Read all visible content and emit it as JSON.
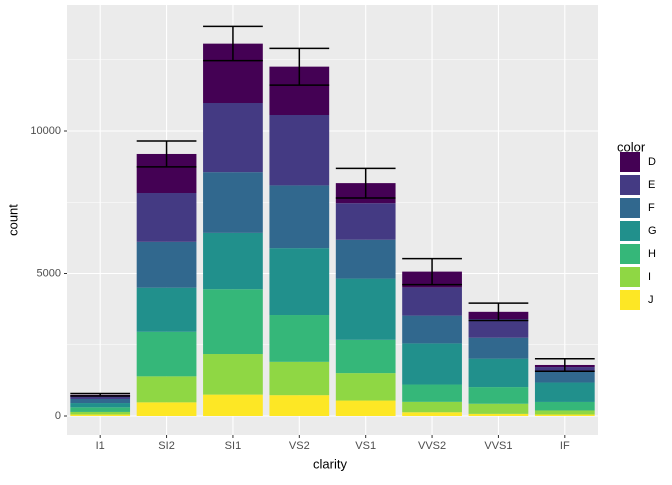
{
  "chart_data": {
    "type": "stacked_bar",
    "x_label": "clarity",
    "y_label": "count",
    "legend_title": "color",
    "categories": [
      "I1",
      "SI2",
      "SI1",
      "VS2",
      "VS1",
      "VVS2",
      "VVS1",
      "IF"
    ],
    "series": [
      {
        "name": "D",
        "color": "#440154",
        "values": [
          42,
          1370,
          2083,
          1697,
          705,
          553,
          252,
          73
        ]
      },
      {
        "name": "E",
        "color": "#443A83",
        "values": [
          102,
          1713,
          2426,
          2470,
          1281,
          991,
          656,
          158
        ]
      },
      {
        "name": "F",
        "color": "#31688E",
        "values": [
          143,
          1609,
          2131,
          2201,
          1364,
          975,
          734,
          385
        ]
      },
      {
        "name": "G",
        "color": "#21908C",
        "values": [
          150,
          1548,
          1976,
          2347,
          2148,
          1443,
          999,
          681
        ]
      },
      {
        "name": "H",
        "color": "#35B779",
        "values": [
          162,
          1563,
          2275,
          1643,
          1169,
          608,
          585,
          299
        ]
      },
      {
        "name": "I",
        "color": "#8FD744",
        "values": [
          92,
          912,
          1424,
          1169,
          962,
          365,
          355,
          143
        ]
      },
      {
        "name": "J",
        "color": "#FDE725",
        "values": [
          50,
          479,
          750,
          731,
          542,
          131,
          74,
          51
        ]
      }
    ],
    "errorbars": {
      "ymin": [
        700,
        8740,
        12470,
        11610,
        7650,
        4610,
        3350,
        1570
      ],
      "ymax": [
        790,
        9650,
        13670,
        12900,
        8690,
        5520,
        3960,
        2010
      ]
    },
    "ylim": [
      -667,
      14421
    ],
    "yticks": [
      0,
      5000,
      10000
    ],
    "y_minor_ticks": [
      2500,
      7500,
      12500
    ],
    "grid": true,
    "legend": "right"
  }
}
